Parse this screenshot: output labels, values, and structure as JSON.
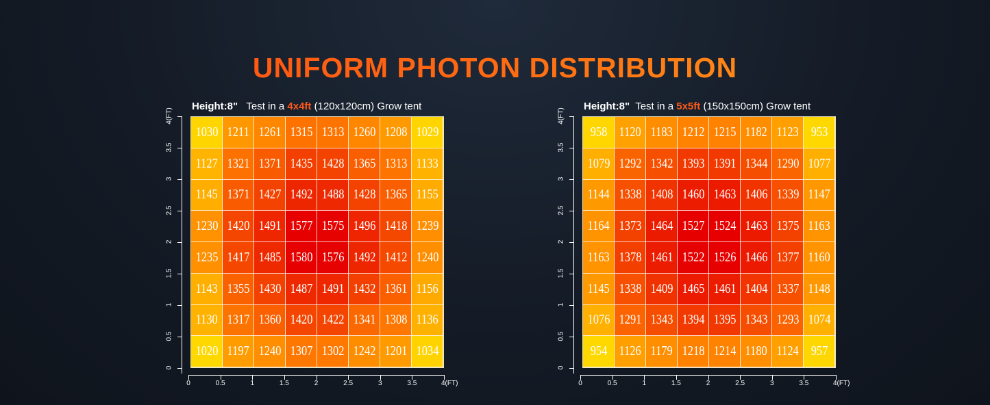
{
  "title": "UNIFORM PHOTON DISTRIBUTION",
  "colors": {
    "low": "#ffd800",
    "mid": "#ff7a00",
    "high": "#e60000",
    "accent": "#ff5a1a"
  },
  "chart_data": [
    {
      "type": "heatmap",
      "title_parts": {
        "height": "Height:8\"",
        "prefix": "Test in a",
        "size": "4x4ft",
        "suffix": "(120x120cm) Grow tent"
      },
      "x_ticks": [
        "0",
        "0.5",
        "1",
        "1.5",
        "2",
        "2.5",
        "3",
        "3.5",
        "4(FT)"
      ],
      "y_ticks": [
        "0",
        "0.5",
        "1",
        "1.5",
        "2",
        "2.5",
        "3",
        "3.5",
        "4(FT)"
      ],
      "xlim": [
        0,
        4
      ],
      "ylim": [
        0,
        4
      ],
      "values": [
        [
          1030,
          1211,
          1261,
          1315,
          1313,
          1260,
          1208,
          1029
        ],
        [
          1127,
          1321,
          1371,
          1435,
          1428,
          1365,
          1313,
          1133
        ],
        [
          1145,
          1371,
          1427,
          1492,
          1488,
          1428,
          1365,
          1155
        ],
        [
          1230,
          1420,
          1491,
          1577,
          1575,
          1496,
          1418,
          1239
        ],
        [
          1235,
          1417,
          1485,
          1580,
          1576,
          1492,
          1412,
          1240
        ],
        [
          1143,
          1355,
          1430,
          1487,
          1491,
          1432,
          1361,
          1156
        ],
        [
          1130,
          1317,
          1360,
          1420,
          1422,
          1341,
          1308,
          1136
        ],
        [
          1020,
          1197,
          1240,
          1307,
          1302,
          1242,
          1201,
          1034
        ]
      ]
    },
    {
      "type": "heatmap",
      "title_parts": {
        "height": "Height:8\"",
        "prefix": "Test in a",
        "size": "5x5ft",
        "suffix": "(150x150cm) Grow tent"
      },
      "x_ticks": [
        "0",
        "0.5",
        "1",
        "1.5",
        "2",
        "2.5",
        "3",
        "3.5",
        "4(FT)"
      ],
      "y_ticks": [
        "0",
        "0.5",
        "1",
        "1.5",
        "2",
        "2.5",
        "3",
        "3.5",
        "4(FT)"
      ],
      "xlim": [
        0,
        4
      ],
      "ylim": [
        0,
        4
      ],
      "values": [
        [
          958,
          1120,
          1183,
          1212,
          1215,
          1182,
          1123,
          953
        ],
        [
          1079,
          1292,
          1342,
          1393,
          1391,
          1344,
          1290,
          1077
        ],
        [
          1144,
          1338,
          1408,
          1460,
          1463,
          1406,
          1339,
          1147
        ],
        [
          1164,
          1373,
          1464,
          1527,
          1524,
          1463,
          1375,
          1163
        ],
        [
          1163,
          1378,
          1461,
          1522,
          1526,
          1466,
          1377,
          1160
        ],
        [
          1145,
          1338,
          1409,
          1465,
          1461,
          1404,
          1337,
          1148
        ],
        [
          1076,
          1291,
          1343,
          1394,
          1395,
          1343,
          1293,
          1074
        ],
        [
          954,
          1126,
          1179,
          1218,
          1214,
          1180,
          1124,
          957
        ]
      ]
    }
  ]
}
